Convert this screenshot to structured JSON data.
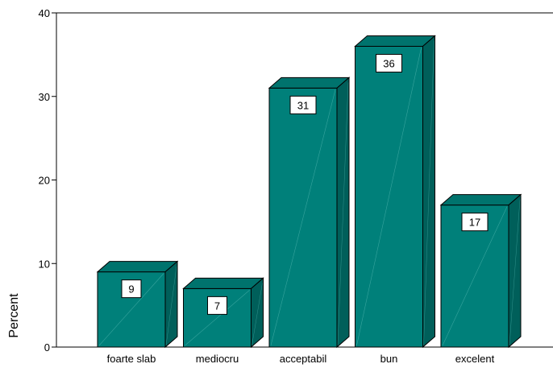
{
  "chart_data": {
    "type": "bar",
    "categories": [
      "foarte slab",
      "mediocru",
      "acceptabil",
      "bun",
      "excelent"
    ],
    "values": [
      9,
      7,
      31,
      36,
      17
    ],
    "data_labels": [
      "9",
      "7",
      "31",
      "36",
      "17"
    ],
    "title": "",
    "xlabel": "",
    "ylabel": "Percent",
    "ylim": [
      0,
      40
    ],
    "yticks": [
      "0",
      "10",
      "20",
      "30",
      "40"
    ],
    "grid": false,
    "legend": "none",
    "style": "3d",
    "colors": {
      "front": "#00807A",
      "top": "#00736D",
      "side": "#005F5A",
      "outline": "#000000"
    }
  }
}
